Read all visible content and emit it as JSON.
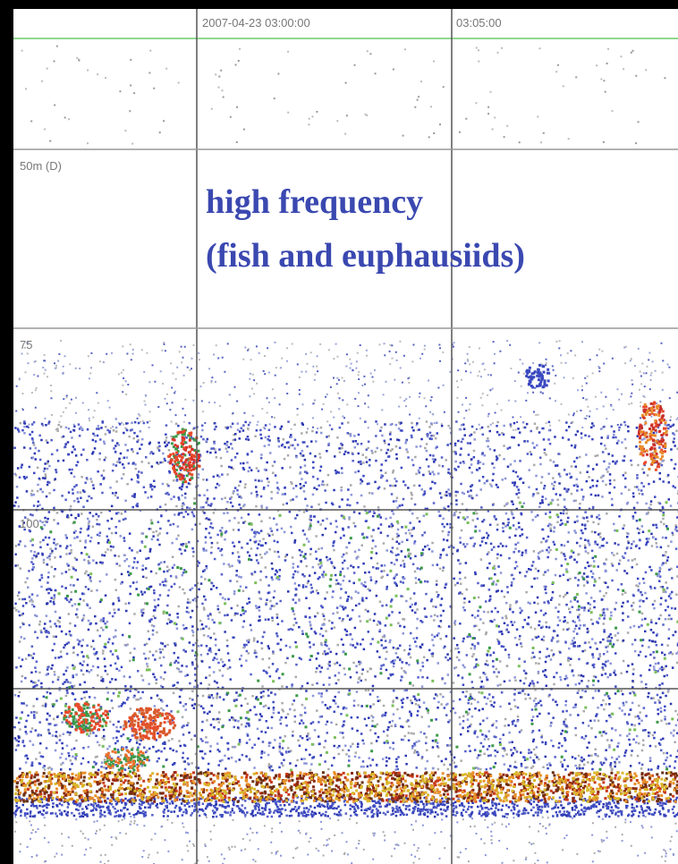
{
  "time_labels": [
    "2007-04-23 03:00:00",
    "03:05:00"
  ],
  "depth_labels": [
    "50m (D)",
    "75",
    "100"
  ],
  "annotation": {
    "line1": "high frequency",
    "line2": "(fish and euphausiids)"
  }
}
